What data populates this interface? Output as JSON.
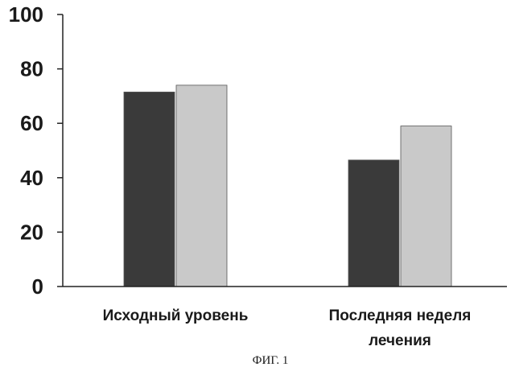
{
  "chart_data": {
    "type": "bar",
    "categories": [
      "Исходный уровень",
      "Последняя неделя лечения"
    ],
    "category_lines": [
      [
        "Исходный уровень"
      ],
      [
        "Последняя неделя",
        "лечения"
      ]
    ],
    "series": [
      {
        "values": [
          71.5,
          46.5
        ],
        "color": "#3a3a3a"
      },
      {
        "values": [
          74,
          59
        ],
        "color": "#c9c9c9"
      }
    ],
    "ylim": [
      0,
      100
    ],
    "yticks": [
      0,
      20,
      40,
      60,
      80,
      100
    ],
    "grid": false,
    "legend": "none"
  },
  "caption": "ФИГ. 1"
}
